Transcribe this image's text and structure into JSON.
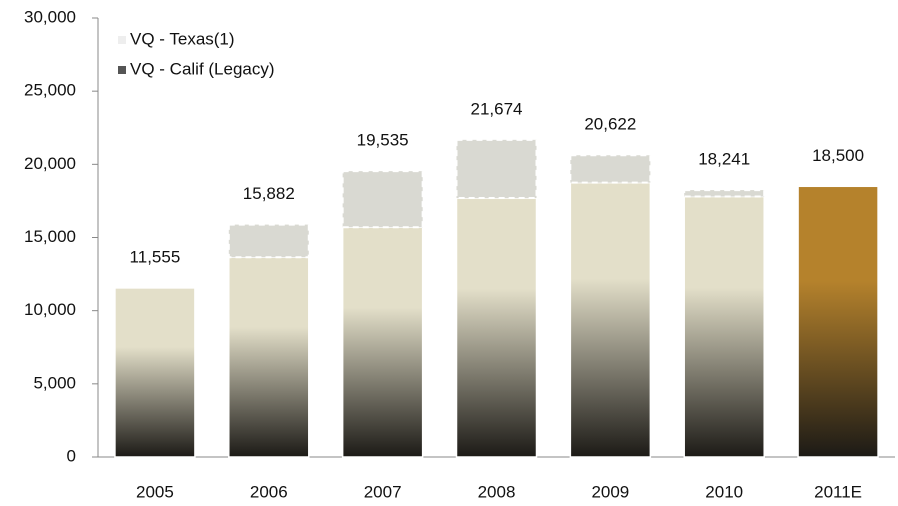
{
  "chart_data": {
    "type": "stacked_bar",
    "categories": [
      "2005",
      "2006",
      "2007",
      "2008",
      "2009",
      "2010",
      "2011E"
    ],
    "series": [
      {
        "name": "VQ - Calif (Legacy)",
        "color": "#e3dfc9",
        "colors": [
          "#e3dfc9",
          "#e3dfc9",
          "#e3dfc9",
          "#e3dfc9",
          "#e3dfc9",
          "#e3dfc9",
          "#b5822c"
        ],
        "values": [
          11555,
          13650,
          15700,
          17700,
          18750,
          17800,
          18500
        ]
      },
      {
        "name": "VQ - Texas(1)",
        "color": "#d9d9d2",
        "values": [
          0,
          2232,
          3835,
          3974,
          1872,
          441,
          0
        ]
      }
    ],
    "totals": [
      11555,
      15882,
      19535,
      21674,
      20622,
      18241,
      18500
    ],
    "total_labels": [
      "11,555",
      "15,882",
      "19,535",
      "21,674",
      "20,622",
      "18,241",
      "18,500"
    ],
    "ylim": [
      0,
      30000
    ],
    "yticks": [
      0,
      {
        "value": 5000,
        "label": "5,000"
      },
      {
        "value": 10000,
        "label": "10,000"
      },
      {
        "value": 15000,
        "label": "15,000"
      },
      {
        "value": 20000,
        "label": "20,000"
      },
      {
        "value": 25000,
        "label": "25,000"
      },
      {
        "value": 30000,
        "label": "30,000"
      }
    ],
    "legend": "top-left"
  }
}
